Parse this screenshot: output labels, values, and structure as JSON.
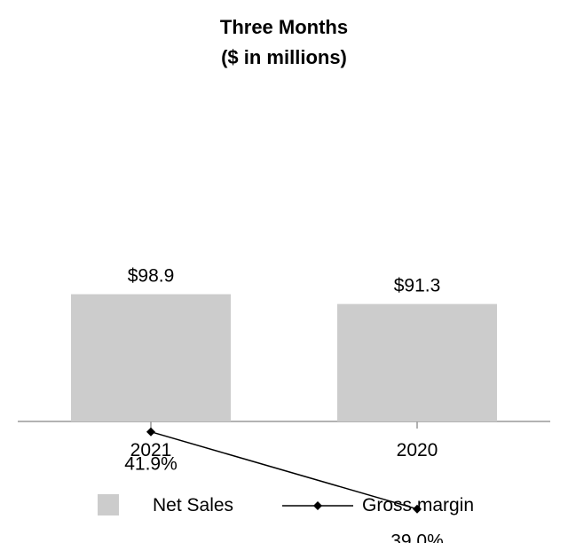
{
  "chart_data": {
    "type": "bar",
    "title": "Three Months",
    "subtitle": "($ in millions)",
    "categories": [
      "2021",
      "2020"
    ],
    "series": [
      {
        "name": "Net Sales",
        "kind": "bar",
        "values": [
          98.9,
          91.3
        ],
        "labels": [
          "$98.9",
          "$91.3"
        ],
        "color": "#cccccc"
      },
      {
        "name": "Gross margin",
        "kind": "line",
        "values": [
          41.9,
          39.0
        ],
        "labels": [
          "41.9%",
          "39.0%"
        ],
        "color": "#000000"
      }
    ],
    "legend": {
      "position": "bottom",
      "items": [
        "Net Sales",
        "Gross margin"
      ]
    },
    "grid": false
  }
}
